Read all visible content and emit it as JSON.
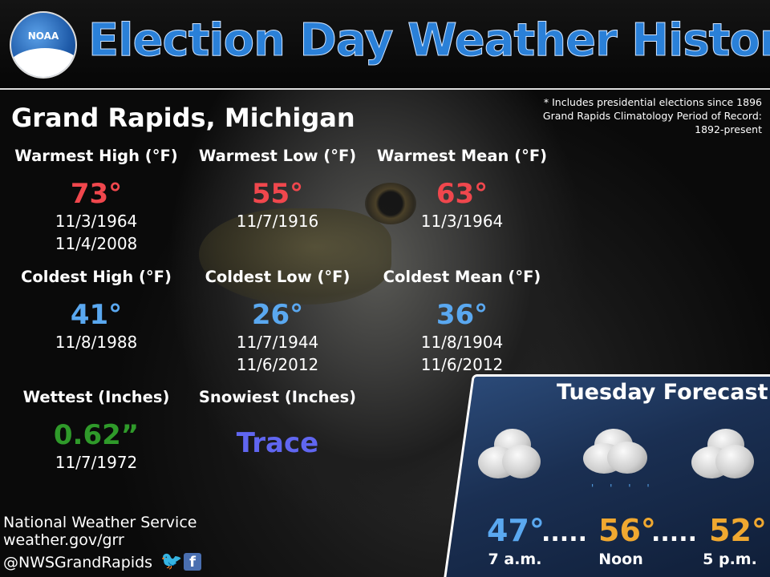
{
  "header": {
    "logo_text": "NOAA",
    "title": "Election Day Weather History"
  },
  "location": "Grand Rapids, Michigan",
  "notes": [
    "* Includes presidential elections since 1896",
    "Grand Rapids Climatology Period of Record:",
    "1892-present"
  ],
  "stats": {
    "warmest_high": {
      "label": "Warmest High (°F)",
      "value": "73°",
      "dates": [
        "11/3/1964",
        "11/4/2008"
      ]
    },
    "warmest_low": {
      "label": "Warmest Low (°F)",
      "value": "55°",
      "dates": [
        "11/7/1916"
      ]
    },
    "warmest_mean": {
      "label": "Warmest Mean (°F)",
      "value": "63°",
      "dates": [
        "11/3/1964"
      ]
    },
    "coldest_high": {
      "label": "Coldest High (°F)",
      "value": "41°",
      "dates": [
        "11/8/1988"
      ]
    },
    "coldest_low": {
      "label": "Coldest Low (°F)",
      "value": "26°",
      "dates": [
        "11/7/1944",
        "11/6/2012"
      ]
    },
    "coldest_mean": {
      "label": "Coldest Mean (°F)",
      "value": "36°",
      "dates": [
        "11/8/1904",
        "11/6/2012"
      ]
    },
    "wettest": {
      "label": "Wettest (Inches)",
      "value": "0.62”",
      "dates": [
        "11/7/1972"
      ]
    },
    "snowiest": {
      "label": "Snowiest (Inches)",
      "value": "Trace",
      "dates": []
    }
  },
  "colors": {
    "warm": "#f0474d",
    "cold": "#5aa8f0",
    "wet": "#2f9a2a",
    "snow": "#6066f0",
    "title": "#2a80d8",
    "forecast_blue": "#5aa8f0",
    "forecast_orange": "#f0a830"
  },
  "footer": {
    "org": "National Weather Service",
    "site": "weather.gov/grr",
    "handle": "@NWSGrandRapids",
    "icons": [
      "twitter-icon",
      "facebook-icon"
    ]
  },
  "forecast": {
    "title": "Tuesday Forecast",
    "periods": [
      {
        "temp": "47°",
        "time": "7 a.m.",
        "icon": "cloudy-icon"
      },
      {
        "temp": "56°",
        "time": "Noon",
        "icon": "rain-cloud-icon"
      },
      {
        "temp": "52°",
        "time": "5 p.m.",
        "icon": "cloudy-icon"
      }
    ],
    "separator": "....."
  }
}
